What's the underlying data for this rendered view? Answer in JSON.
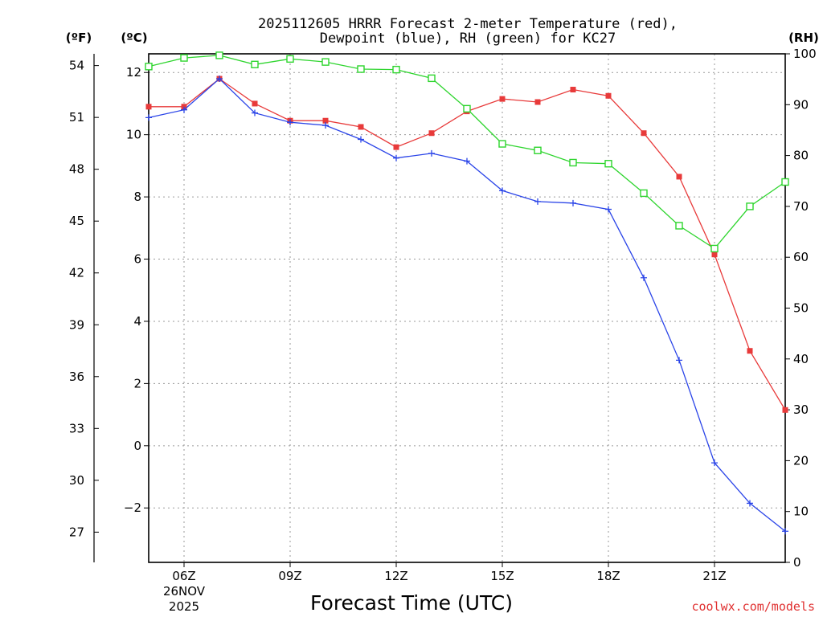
{
  "chart_data": {
    "type": "line",
    "title_line1": "2025112605 HRRR Forecast 2-meter Temperature (red),",
    "title_line2": "Dewpoint (blue), RH (green) for KC27",
    "xlabel": "Forecast Time (UTC)",
    "credit": "coolwx.com/models",
    "units": {
      "left_f": "(ºF)",
      "left_c": "(ºC)",
      "right": "(RH)"
    },
    "x_hours": [
      5,
      6,
      7,
      8,
      9,
      10,
      11,
      12,
      13,
      14,
      15,
      16,
      17,
      18,
      19,
      20,
      21,
      22,
      23
    ],
    "x_range": [
      5,
      23
    ],
    "x_ticks": [
      {
        "hour": 6,
        "label": "06Z"
      },
      {
        "hour": 9,
        "label": "09Z"
      },
      {
        "hour": 12,
        "label": "12Z"
      },
      {
        "hour": 15,
        "label": "15Z"
      },
      {
        "hour": 18,
        "label": "18Z"
      },
      {
        "hour": 21,
        "label": "21Z"
      }
    ],
    "date_label": {
      "day": "26NOV",
      "year": "2025"
    },
    "celsius_range": [
      -3.75,
      12.6
    ],
    "celsius_ticks": [
      12,
      10,
      8,
      6,
      4,
      2,
      0,
      -2
    ],
    "fahrenheit_ticks": [
      54,
      51,
      48,
      45,
      42,
      39,
      36,
      33,
      30,
      27
    ],
    "rh_range": [
      0,
      100
    ],
    "rh_ticks": [
      100,
      90,
      80,
      70,
      60,
      50,
      40,
      30,
      20,
      10,
      0
    ],
    "series": [
      {
        "name": "Temperature",
        "axis": "celsius",
        "color": "#e83a3a",
        "marker": "filled-square",
        "values": [
          10.9,
          10.9,
          11.8,
          11.0,
          10.45,
          10.45,
          10.25,
          9.6,
          10.05,
          10.75,
          11.15,
          11.05,
          11.45,
          11.25,
          10.05,
          8.65,
          6.15,
          3.05,
          1.15
        ]
      },
      {
        "name": "Dewpoint",
        "axis": "celsius",
        "color": "#2a44e8",
        "marker": "plus",
        "values": [
          10.55,
          10.8,
          11.8,
          10.7,
          10.4,
          10.3,
          9.85,
          9.25,
          9.4,
          9.15,
          8.2,
          7.85,
          7.8,
          7.6,
          5.4,
          2.75,
          -0.55,
          -1.85,
          -2.75
        ]
      },
      {
        "name": "RH",
        "axis": "rh",
        "color": "#2ed52e",
        "marker": "open-square",
        "values": [
          97.5,
          99.2,
          99.7,
          97.9,
          99.0,
          98.4,
          97.0,
          96.9,
          95.2,
          89.2,
          82.3,
          81.0,
          78.6,
          78.4,
          72.6,
          66.2,
          61.7,
          70.0,
          74.8
        ]
      }
    ]
  }
}
